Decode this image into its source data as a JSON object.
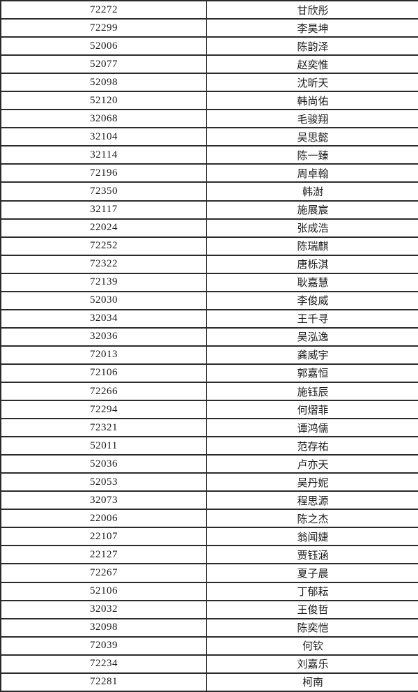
{
  "colors": {
    "border": "#2b2b2b",
    "text": "#1a1a1a",
    "background": "#ffffff"
  },
  "table": {
    "columns": [
      "student_id",
      "student_name"
    ],
    "rows": [
      {
        "id": "72272",
        "name": "甘欣彤"
      },
      {
        "id": "72299",
        "name": "李昊坤"
      },
      {
        "id": "52006",
        "name": "陈韵泽"
      },
      {
        "id": "52077",
        "name": "赵奕惟"
      },
      {
        "id": "52098",
        "name": "沈昕天"
      },
      {
        "id": "52120",
        "name": "韩尚佑"
      },
      {
        "id": "32068",
        "name": "毛骏翔"
      },
      {
        "id": "32104",
        "name": "吴思懿"
      },
      {
        "id": "32114",
        "name": "陈一臻"
      },
      {
        "id": "72196",
        "name": "周卓翰"
      },
      {
        "id": "72350",
        "name": "韩澍"
      },
      {
        "id": "32117",
        "name": "施展宸"
      },
      {
        "id": "22024",
        "name": "张成浩"
      },
      {
        "id": "72252",
        "name": "陈瑞麒"
      },
      {
        "id": "72322",
        "name": "唐栎淇"
      },
      {
        "id": "72139",
        "name": "耿嘉慧"
      },
      {
        "id": "52030",
        "name": "李俊威"
      },
      {
        "id": "32034",
        "name": "王千寻"
      },
      {
        "id": "32036",
        "name": "吴泓逸"
      },
      {
        "id": "72013",
        "name": "龚威宇"
      },
      {
        "id": "72106",
        "name": "郭嘉恒"
      },
      {
        "id": "72266",
        "name": "施钰辰"
      },
      {
        "id": "72294",
        "name": "何熠菲"
      },
      {
        "id": "72321",
        "name": "谭鸿儒"
      },
      {
        "id": "52011",
        "name": "范存祐"
      },
      {
        "id": "52036",
        "name": "卢亦天"
      },
      {
        "id": "52053",
        "name": "吴丹妮"
      },
      {
        "id": "32073",
        "name": "程思源"
      },
      {
        "id": "22006",
        "name": "陈之杰"
      },
      {
        "id": "22107",
        "name": "翁闻婕"
      },
      {
        "id": "22127",
        "name": "贾钰涵"
      },
      {
        "id": "72267",
        "name": "夏子晨"
      },
      {
        "id": "52106",
        "name": "丁郁耘"
      },
      {
        "id": "32032",
        "name": "王俊哲"
      },
      {
        "id": "32098",
        "name": "陈奕恺"
      },
      {
        "id": "72039",
        "name": "何钦"
      },
      {
        "id": "72234",
        "name": "刘嘉乐"
      },
      {
        "id": "72281",
        "name": "柯南"
      }
    ]
  }
}
